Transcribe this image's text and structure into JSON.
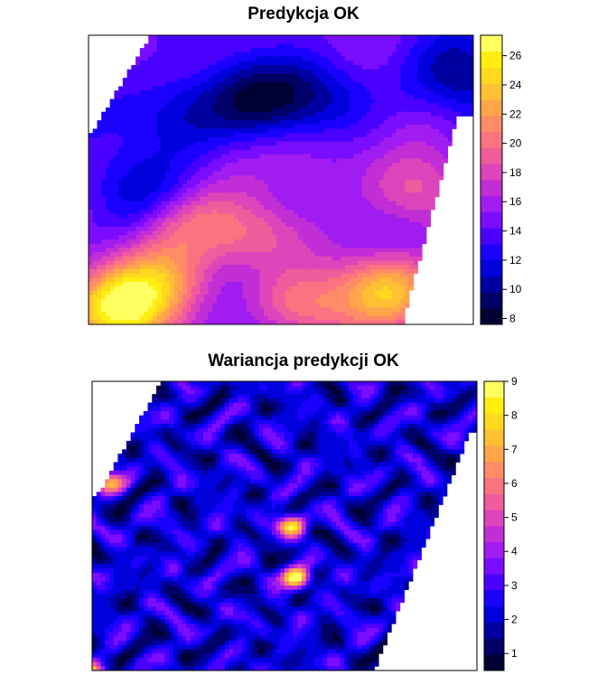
{
  "chart_data": [
    {
      "type": "heatmap",
      "title": "Predykcja OK",
      "legend": {
        "placement": "right",
        "range": [
          7.6,
          27.4
        ],
        "ticks": [
          8,
          10,
          12,
          14,
          16,
          18,
          20,
          22,
          24,
          26
        ],
        "tick_labels": [
          "8",
          "10",
          "12",
          "14",
          "16",
          "18",
          "20",
          "22",
          "24",
          "26"
        ],
        "colors": [
          "#000033",
          "#000066",
          "#0000a0",
          "#0000dd",
          "#1a00ff",
          "#4a00ff",
          "#7a0cff",
          "#a01cf0",
          "#c22ed6",
          "#dd45bb",
          "#f05c9c",
          "#fc7380",
          "#ff8c66",
          "#ffa64b",
          "#ffc033",
          "#ffd91e",
          "#ffee10",
          "#ffff60"
        ]
      },
      "field_peaks": [
        {
          "x": 0.08,
          "y": 0.05,
          "value": 25.5
        },
        {
          "x": 0.2,
          "y": 0.15,
          "value": 21
        },
        {
          "x": 0.42,
          "y": 0.3,
          "value": 19
        },
        {
          "x": 0.78,
          "y": 0.12,
          "value": 23.5
        },
        {
          "x": 0.55,
          "y": 0.07,
          "value": 21
        },
        {
          "x": 0.3,
          "y": 0.7,
          "value": 16.5
        },
        {
          "x": 0.6,
          "y": 0.58,
          "value": 17
        },
        {
          "x": 0.85,
          "y": 0.45,
          "value": 19
        },
        {
          "x": 0.5,
          "y": 0.9,
          "value": 15
        },
        {
          "x": 0.25,
          "y": 0.35,
          "value": 19.5
        }
      ],
      "field_lows": [
        {
          "x": 0.25,
          "y": 0.72,
          "value": 9
        },
        {
          "x": 0.43,
          "y": 0.77,
          "value": 10
        },
        {
          "x": 0.6,
          "y": 0.8,
          "value": 10.5
        },
        {
          "x": 0.15,
          "y": 0.45,
          "value": 11.5
        },
        {
          "x": 0.97,
          "y": 0.85,
          "value": 10.5
        },
        {
          "x": 0.5,
          "y": 0.15,
          "value": 13
        }
      ],
      "base_value": 14.5
    },
    {
      "type": "heatmap",
      "title": "Wariancja predykcji OK",
      "legend": {
        "placement": "right",
        "range": [
          0.5,
          9.0
        ],
        "ticks": [
          1,
          2,
          3,
          4,
          5,
          6,
          7,
          8,
          9
        ],
        "tick_labels": [
          "1",
          "2",
          "3",
          "4",
          "5",
          "6",
          "7",
          "8",
          "9"
        ],
        "colors": [
          "#000033",
          "#000066",
          "#0000a0",
          "#0000dd",
          "#1a00ff",
          "#4a00ff",
          "#7a0cff",
          "#a01cf0",
          "#c22ed6",
          "#dd45bb",
          "#f05c9c",
          "#fc7380",
          "#ff8c66",
          "#ffa64b",
          "#ffc033",
          "#ffd91e",
          "#ffee10",
          "#ffff60"
        ]
      },
      "field_peaks": [
        {
          "x": 0.53,
          "y": 0.32,
          "value": 9
        },
        {
          "x": 0.52,
          "y": 0.5,
          "value": 8
        },
        {
          "x": 0.0,
          "y": 0.0,
          "value": 6
        },
        {
          "x": 0.05,
          "y": 0.65,
          "value": 6.5
        }
      ],
      "base_value": 2.6
    }
  ]
}
